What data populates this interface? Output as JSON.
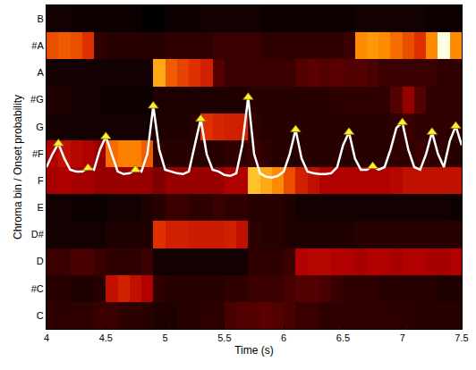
{
  "chart_data": {
    "type": "heatmap",
    "x_label": "Time (s)",
    "y_label": "Chroma bin / Onset probability",
    "categories": [
      "C",
      "#C",
      "D",
      "D#",
      "E",
      "F",
      "#F",
      "G",
      "#G",
      "A",
      "#A",
      "B"
    ],
    "x": [
      4.05,
      4.15,
      4.25,
      4.35,
      4.45,
      4.55,
      4.65,
      4.75,
      4.85,
      4.95,
      5.05,
      5.15,
      5.25,
      5.35,
      5.45,
      5.55,
      5.65,
      5.75,
      5.85,
      5.95,
      6.05,
      6.15,
      6.25,
      6.35,
      6.45,
      6.55,
      6.65,
      6.75,
      6.85,
      6.95,
      7.05,
      7.15,
      7.25,
      7.35,
      7.45
    ],
    "cells": [
      [
        0.12,
        0.12,
        0.12,
        0.12,
        0.15,
        0.15,
        0.12,
        0.12,
        0.1,
        0.08,
        0.08,
        0.1,
        0.1,
        0.12,
        0.12,
        0.18,
        0.2,
        0.2,
        0.22,
        0.2,
        0.18,
        0.15,
        0.15,
        0.12,
        0.12,
        0.12,
        0.12,
        0.12,
        0.12,
        0.12,
        0.12,
        0.1,
        0.1,
        0.1,
        0.1
      ],
      [
        0.1,
        0.1,
        0.08,
        0.08,
        0.1,
        0.45,
        0.5,
        0.45,
        0.4,
        0.12,
        0.1,
        0.1,
        0.1,
        0.1,
        0.1,
        0.12,
        0.12,
        0.15,
        0.15,
        0.15,
        0.18,
        0.2,
        0.2,
        0.18,
        0.15,
        0.12,
        0.12,
        0.12,
        0.1,
        0.1,
        0.1,
        0.1,
        0.1,
        0.08,
        0.08
      ],
      [
        0.15,
        0.15,
        0.18,
        0.18,
        0.15,
        0.12,
        0.12,
        0.12,
        0.15,
        0.05,
        0.05,
        0.05,
        0.05,
        0.05,
        0.05,
        0.05,
        0.05,
        0.12,
        0.12,
        0.12,
        0.15,
        0.4,
        0.42,
        0.42,
        0.4,
        0.4,
        0.38,
        0.4,
        0.4,
        0.38,
        0.4,
        0.4,
        0.38,
        0.38,
        0.4
      ],
      [
        0.05,
        0.05,
        0.05,
        0.05,
        0.05,
        0.08,
        0.08,
        0.08,
        0.08,
        0.55,
        0.5,
        0.5,
        0.48,
        0.48,
        0.48,
        0.5,
        0.45,
        0.12,
        0.1,
        0.1,
        0.08,
        0.08,
        0.08,
        0.08,
        0.08,
        0.08,
        0.1,
        0.1,
        0.1,
        0.1,
        0.1,
        0.1,
        0.1,
        0.1,
        0.1
      ],
      [
        0.05,
        0.05,
        0.03,
        0.03,
        0.03,
        0.05,
        0.05,
        0.05,
        0.08,
        0.1,
        0.15,
        0.15,
        0.12,
        0.12,
        0.15,
        0.12,
        0.12,
        0.1,
        0.1,
        0.1,
        0.08,
        0.05,
        0.05,
        0.05,
        0.05,
        0.05,
        0.05,
        0.05,
        0.05,
        0.05,
        0.05,
        0.05,
        0.05,
        0.05,
        0.03
      ],
      [
        0.38,
        0.4,
        0.38,
        0.38,
        0.35,
        0.35,
        0.35,
        0.35,
        0.35,
        0.3,
        0.35,
        0.35,
        0.35,
        0.35,
        0.35,
        0.4,
        0.4,
        0.8,
        0.75,
        0.7,
        0.6,
        0.5,
        0.45,
        0.4,
        0.4,
        0.4,
        0.4,
        0.4,
        0.4,
        0.42,
        0.45,
        0.45,
        0.45,
        0.45,
        0.45
      ],
      [
        0.4,
        0.45,
        0.42,
        0.4,
        0.35,
        0.65,
        0.68,
        0.68,
        0.62,
        0.12,
        0.1,
        0.1,
        0.1,
        0.1,
        0.1,
        0.12,
        0.12,
        0.15,
        0.12,
        0.1,
        0.1,
        0.1,
        0.1,
        0.1,
        0.1,
        0.1,
        0.1,
        0.1,
        0.1,
        0.12,
        0.12,
        0.15,
        0.12,
        0.12,
        0.1
      ],
      [
        0.05,
        0.05,
        0.05,
        0.05,
        0.05,
        0.05,
        0.05,
        0.05,
        0.05,
        0.08,
        0.08,
        0.08,
        0.1,
        0.55,
        0.52,
        0.5,
        0.5,
        0.12,
        0.1,
        0.1,
        0.1,
        0.1,
        0.1,
        0.1,
        0.1,
        0.1,
        0.1,
        0.1,
        0.1,
        0.12,
        0.15,
        0.12,
        0.12,
        0.12,
        0.12
      ],
      [
        0.08,
        0.08,
        0.05,
        0.05,
        0.05,
        0.03,
        0.03,
        0.03,
        0.03,
        0.08,
        0.08,
        0.08,
        0.08,
        0.08,
        0.08,
        0.08,
        0.08,
        0.1,
        0.1,
        0.1,
        0.1,
        0.1,
        0.1,
        0.1,
        0.12,
        0.12,
        0.12,
        0.12,
        0.12,
        0.2,
        0.35,
        0.2,
        0.12,
        0.12,
        0.12
      ],
      [
        0.05,
        0.05,
        0.05,
        0.05,
        0.05,
        0.05,
        0.05,
        0.05,
        0.05,
        0.75,
        0.62,
        0.58,
        0.55,
        0.5,
        0.2,
        0.15,
        0.15,
        0.15,
        0.15,
        0.15,
        0.15,
        0.2,
        0.22,
        0.2,
        0.22,
        0.2,
        0.2,
        0.18,
        0.15,
        0.15,
        0.15,
        0.15,
        0.15,
        0.12,
        0.12
      ],
      [
        0.6,
        0.62,
        0.6,
        0.55,
        0.12,
        0.1,
        0.1,
        0.1,
        0.1,
        0.1,
        0.12,
        0.12,
        0.12,
        0.12,
        0.15,
        0.15,
        0.15,
        0.15,
        0.12,
        0.12,
        0.12,
        0.12,
        0.12,
        0.12,
        0.12,
        0.15,
        0.7,
        0.72,
        0.7,
        0.65,
        0.6,
        0.55,
        0.7,
        1.0,
        0.7
      ],
      [
        0.05,
        0.05,
        0.03,
        0.03,
        0.03,
        0.03,
        0.03,
        0.03,
        0.0,
        0.0,
        0.03,
        0.03,
        0.03,
        0.05,
        0.05,
        0.05,
        0.05,
        0.05,
        0.03,
        0.03,
        0.03,
        0.03,
        0.03,
        0.03,
        0.03,
        0.03,
        0.05,
        0.05,
        0.05,
        0.05,
        0.05,
        0.05,
        0.03,
        0.03,
        0.03
      ]
    ],
    "xlim": [
      4,
      7.5
    ],
    "xticks": [
      4,
      4.5,
      5,
      5.5,
      6,
      6.5,
      7,
      7.5
    ],
    "y2lim": [
      -1.7,
      2
    ],
    "series": [
      {
        "type": "line",
        "color": "#ffffff",
        "axis": "y2",
        "x": [
          4.0,
          4.05,
          4.1,
          4.15,
          4.2,
          4.25,
          4.3,
          4.35,
          4.4,
          4.45,
          4.5,
          4.55,
          4.6,
          4.65,
          4.7,
          4.75,
          4.8,
          4.85,
          4.9,
          4.95,
          5.0,
          5.05,
          5.1,
          5.15,
          5.2,
          5.25,
          5.3,
          5.35,
          5.4,
          5.45,
          5.5,
          5.55,
          5.6,
          5.65,
          5.7,
          5.75,
          5.8,
          5.85,
          5.9,
          5.95,
          6.0,
          6.05,
          6.1,
          6.15,
          6.2,
          6.25,
          6.3,
          6.35,
          6.4,
          6.45,
          6.5,
          6.55,
          6.6,
          6.65,
          6.7,
          6.75,
          6.8,
          6.85,
          6.9,
          6.95,
          7.0,
          7.05,
          7.1,
          7.15,
          7.2,
          7.25,
          7.3,
          7.35,
          7.4,
          7.45,
          7.5
        ],
        "values": [
          0.15,
          0.3,
          0.42,
          0.25,
          0.12,
          0.1,
          0.1,
          0.14,
          0.12,
          0.35,
          0.5,
          0.3,
          0.1,
          0.07,
          0.08,
          0.12,
          0.1,
          0.3,
          0.85,
          0.35,
          0.12,
          0.1,
          0.08,
          0.07,
          0.1,
          0.4,
          0.7,
          0.3,
          0.12,
          0.1,
          0.06,
          0.05,
          0.08,
          0.4,
          0.95,
          0.3,
          0.08,
          0.04,
          0.03,
          0.05,
          0.1,
          0.3,
          0.58,
          0.25,
          0.1,
          0.08,
          0.07,
          0.07,
          0.08,
          0.15,
          0.4,
          0.55,
          0.25,
          0.12,
          0.12,
          0.16,
          0.12,
          0.15,
          0.35,
          0.6,
          0.66,
          0.35,
          0.15,
          0.12,
          0.3,
          0.55,
          0.3,
          0.15,
          0.45,
          0.62,
          0.4
        ]
      },
      {
        "type": "scatter",
        "color": "#ffee33",
        "marker": "triangle-up",
        "axis": "y2",
        "x": [
          4.1,
          4.35,
          4.5,
          4.75,
          4.9,
          5.3,
          5.7,
          6.1,
          6.55,
          6.75,
          7.0,
          7.25,
          7.45
        ],
        "values": [
          0.42,
          0.14,
          0.5,
          0.12,
          0.85,
          0.7,
          0.95,
          0.58,
          0.55,
          0.16,
          0.66,
          0.55,
          0.62
        ]
      }
    ]
  }
}
